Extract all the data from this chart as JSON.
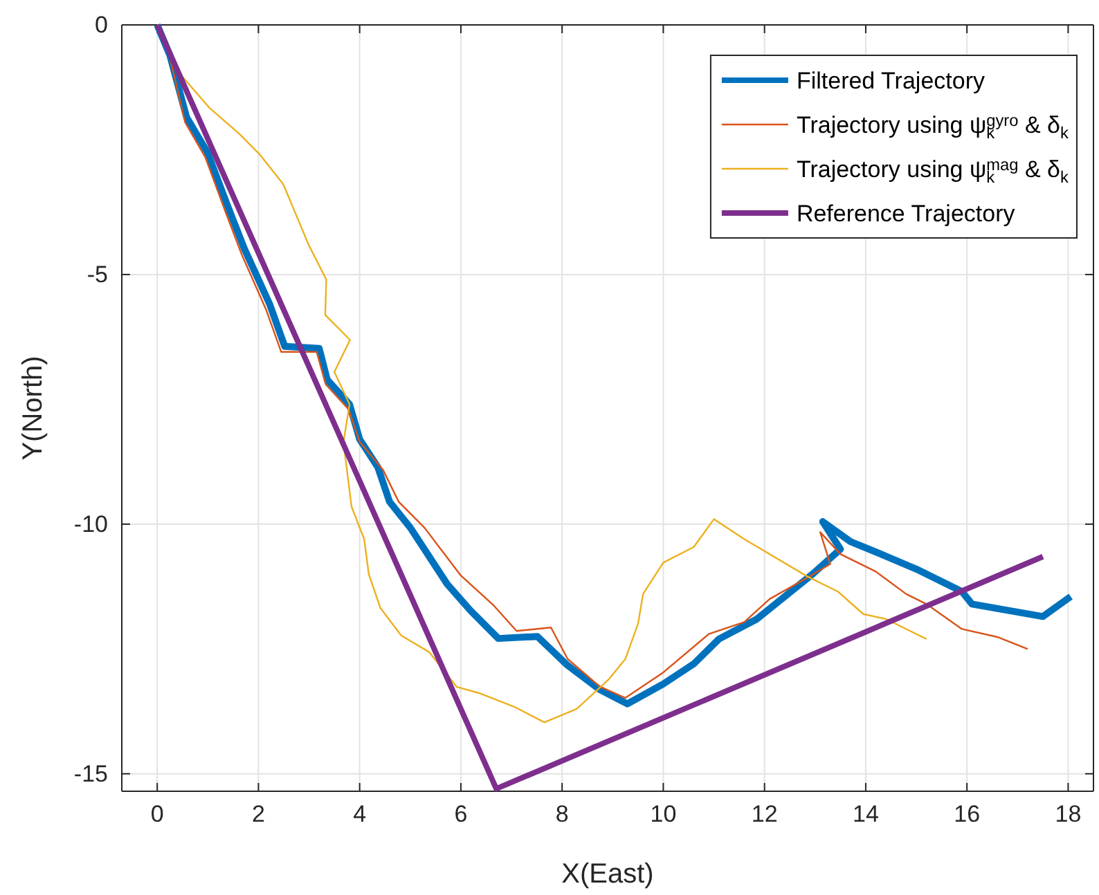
{
  "chart_data": {
    "type": "line",
    "xlabel": "X(East)",
    "ylabel": "Y(North)",
    "xlim": [
      -0.7,
      18.5
    ],
    "ylim": [
      -15.35,
      0
    ],
    "xticks": [
      0,
      2,
      4,
      6,
      8,
      10,
      12,
      14,
      16,
      18
    ],
    "yticks": [
      -15,
      -10,
      -5,
      0
    ],
    "grid": true,
    "legend": "top right",
    "line_style": "solid",
    "marker": "none",
    "series": [
      {
        "name": "Filtered Trajectory",
        "color": "#0072bd",
        "x": [
          0,
          0.25,
          0.58,
          0.99,
          1.4,
          1.72,
          2.22,
          2.52,
          3.2,
          3.36,
          3.8,
          4.0,
          4.36,
          4.59,
          5.0,
          5.73,
          6.19,
          6.74,
          7.51,
          8.11,
          8.74,
          9.29,
          10.0,
          10.6,
          11.1,
          11.85,
          12.95,
          13.5,
          13.15,
          13.7,
          14.3,
          15.0,
          15.9,
          16.1,
          17.5,
          18.05
        ],
        "values": [
          0,
          -0.61,
          -1.85,
          -2.55,
          -3.65,
          -4.48,
          -5.59,
          -6.44,
          -6.48,
          -7.11,
          -7.6,
          -8.3,
          -8.86,
          -9.55,
          -10.07,
          -11.2,
          -11.73,
          -12.29,
          -12.25,
          -12.83,
          -13.31,
          -13.6,
          -13.2,
          -12.8,
          -12.3,
          -11.9,
          -11.0,
          -10.5,
          -9.95,
          -10.35,
          -10.6,
          -10.9,
          -11.35,
          -11.6,
          -11.85,
          -11.45
        ]
      },
      {
        "name": "Trajectory using ψ$_{k}$$^{gyro}$ & δ$_{k}$",
        "color": "#d95319",
        "x": [
          0,
          0.25,
          0.55,
          0.95,
          1.35,
          1.67,
          2.15,
          2.45,
          3.15,
          3.33,
          3.78,
          4.0,
          4.46,
          4.77,
          5.28,
          6.0,
          6.65,
          7.1,
          7.78,
          8.11,
          8.74,
          9.25,
          10.0,
          10.9,
          11.6,
          12.1,
          12.85,
          13.3,
          13.1,
          13.5,
          14.2,
          14.8,
          15.2,
          15.9,
          16.6,
          17.2
        ],
        "values": [
          0,
          -0.65,
          -1.95,
          -2.65,
          -3.75,
          -4.6,
          -5.7,
          -6.55,
          -6.55,
          -7.2,
          -7.7,
          -8.35,
          -8.91,
          -9.55,
          -10.07,
          -11.03,
          -11.63,
          -12.14,
          -12.07,
          -12.7,
          -13.25,
          -13.48,
          -12.97,
          -12.2,
          -11.96,
          -11.5,
          -11.07,
          -10.8,
          -10.16,
          -10.6,
          -10.95,
          -11.4,
          -11.6,
          -12.1,
          -12.26,
          -12.5
        ]
      },
      {
        "name": "Trajectory using ψ$_{k}$$^{mag}$ & δ$_{k}$",
        "color": "#edb120",
        "x": [
          0,
          0.44,
          1.03,
          1.62,
          2.03,
          2.49,
          2.99,
          3.34,
          3.32,
          3.81,
          3.5,
          3.8,
          3.68,
          3.84,
          4.09,
          4.18,
          4.41,
          4.82,
          5.37,
          5.92,
          6.38,
          7.06,
          7.65,
          8.29,
          8.93,
          9.25,
          9.5,
          9.6,
          10.0,
          10.6,
          11.0,
          11.6,
          12.85,
          13.45,
          13.95,
          14.4,
          15.2
        ],
        "values": [
          0,
          -0.97,
          -1.66,
          -2.18,
          -2.6,
          -3.19,
          -4.4,
          -5.1,
          -5.81,
          -6.31,
          -6.95,
          -7.6,
          -8.36,
          -9.65,
          -10.3,
          -11.0,
          -11.68,
          -12.23,
          -12.56,
          -13.26,
          -13.39,
          -13.66,
          -13.97,
          -13.7,
          -13.1,
          -12.7,
          -12.0,
          -11.4,
          -10.77,
          -10.46,
          -9.9,
          -10.3,
          -11.05,
          -11.35,
          -11.8,
          -11.9,
          -12.3
        ]
      },
      {
        "name": "Reference Trajectory",
        "color": "#7e2f8e",
        "x": [
          0,
          6.7,
          17.5
        ],
        "values": [
          0,
          -15.3,
          -10.65
        ]
      }
    ]
  }
}
